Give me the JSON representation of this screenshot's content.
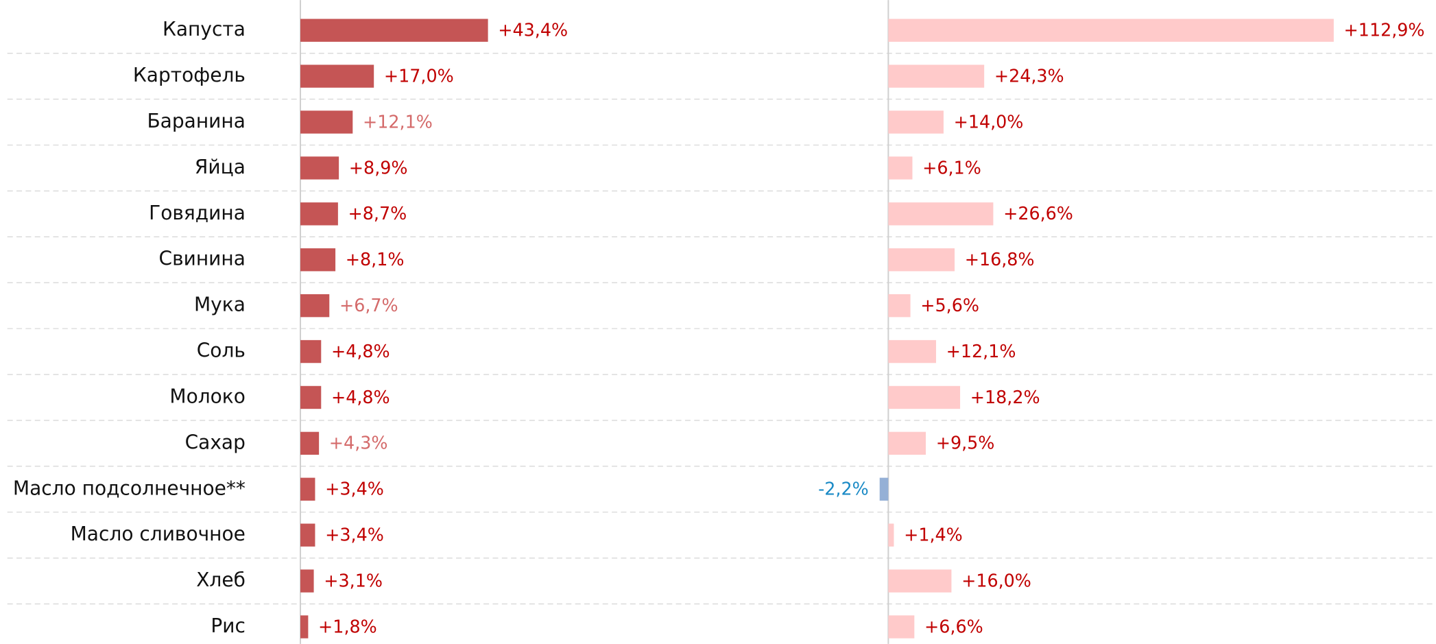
{
  "chart_data": [
    {
      "type": "barh",
      "categories": [
        "Капуста",
        "Картофель",
        "Баранина",
        "Яйца",
        "Говядина",
        "Свинина",
        "Мука",
        "Соль",
        "Молоко",
        "Сахар",
        "Масло подсолнечное**",
        "Масло сливочное",
        "Хлеб",
        "Рис"
      ],
      "values": [
        43.4,
        17.0,
        12.1,
        8.9,
        8.7,
        8.1,
        6.7,
        4.8,
        4.8,
        4.3,
        3.4,
        3.4,
        3.1,
        1.8
      ],
      "value_labels": [
        "+43,4%",
        "+17,0%",
        "+12,1%",
        "+8,9%",
        "+8,7%",
        "+8,1%",
        "+6,7%",
        "+4,8%",
        "+4,8%",
        "+4,3%",
        "+3,4%",
        "+3,4%",
        "+3,1%",
        "+1,8%"
      ],
      "value_label_colors": [
        "#c00000",
        "#c00000",
        "#d46a6a",
        "#c00000",
        "#c00000",
        "#c00000",
        "#d46a6a",
        "#c00000",
        "#c00000",
        "#d46a6a",
        "#c00000",
        "#c00000",
        "#c00000",
        "#c00000"
      ],
      "color": "#c55555",
      "xlim": [
        0,
        100
      ]
    },
    {
      "type": "barh",
      "values": [
        112.9,
        24.3,
        14.0,
        6.1,
        26.6,
        16.8,
        5.6,
        12.1,
        18.2,
        9.5,
        -2.2,
        1.4,
        16.0,
        6.6
      ],
      "value_labels": [
        "+112,9%",
        "+24,3%",
        "+14,0%",
        "+6,1%",
        "+26,6%",
        "+16,8%",
        "+5,6%",
        "+12,1%",
        "+18,2%",
        "+9,5%",
        "-2,2%",
        "+1,4%",
        "+16,0%",
        "+6,6%"
      ],
      "color": "#ffcaca",
      "negative_color": "#95b0d6",
      "label_color": "#c00000",
      "negative_label_color": "#1a8ac6",
      "xlim": [
        -10,
        130
      ]
    }
  ]
}
